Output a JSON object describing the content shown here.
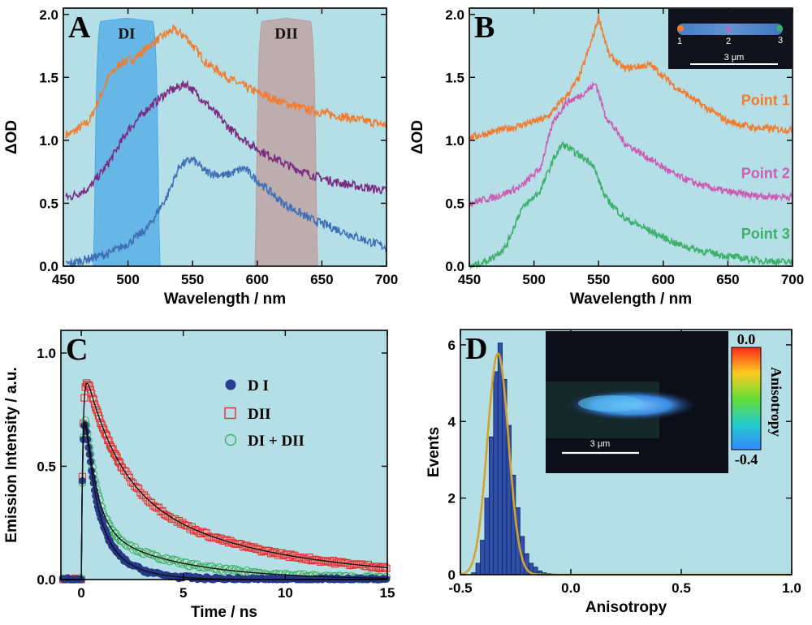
{
  "colors": {
    "bg": "#b4dfe7",
    "orange": "#f37b2d",
    "purple": "#7b2a82",
    "blue": "#3e6fb6",
    "pink": "#cc5cb4",
    "green": "#3caf6a",
    "red": "#e03030",
    "navy": "#2c3e94",
    "gold": "#d4a32a",
    "di_band": "#4aa8e6",
    "dii_band": "#c09a9a"
  },
  "chart_data": [
    {
      "panel": "A",
      "type": "line",
      "ylabel": "ΔOD",
      "xlabel": "Wavelength / nm",
      "xlim": [
        450,
        700
      ],
      "ylim": [
        0,
        2.05
      ],
      "xticks": [
        450,
        500,
        550,
        600,
        650,
        700
      ],
      "yticks": [
        0.0,
        0.5,
        1.0,
        1.5,
        2.0
      ],
      "bands": [
        {
          "label": "DI",
          "range": [
            475,
            523
          ],
          "color": "#4aa8e6"
        },
        {
          "label": "DII",
          "range": [
            600,
            645
          ],
          "color": "#c09a9a"
        }
      ],
      "series": [
        {
          "color": "#f37b2d",
          "x": [
            455,
            470,
            485,
            495,
            505,
            520,
            535,
            545,
            560,
            580,
            600,
            620,
            640,
            660,
            680,
            700
          ],
          "y": [
            1.05,
            1.15,
            1.5,
            1.62,
            1.65,
            1.78,
            1.88,
            1.82,
            1.62,
            1.48,
            1.38,
            1.3,
            1.24,
            1.2,
            1.16,
            1.12
          ]
        },
        {
          "color": "#7b2a82",
          "x": [
            455,
            470,
            485,
            500,
            515,
            530,
            545,
            560,
            580,
            600,
            620,
            640,
            660,
            680,
            700
          ],
          "y": [
            0.55,
            0.62,
            0.82,
            1.08,
            1.25,
            1.38,
            1.45,
            1.3,
            1.08,
            0.93,
            0.82,
            0.73,
            0.67,
            0.63,
            0.6
          ]
        },
        {
          "color": "#3e6fb6",
          "x": [
            455,
            470,
            485,
            500,
            515,
            530,
            540,
            550,
            560,
            575,
            590,
            600,
            620,
            640,
            660,
            680,
            700
          ],
          "y": [
            0.02,
            0.06,
            0.1,
            0.18,
            0.3,
            0.55,
            0.8,
            0.85,
            0.75,
            0.72,
            0.78,
            0.68,
            0.5,
            0.38,
            0.3,
            0.22,
            0.15
          ]
        }
      ]
    },
    {
      "panel": "B",
      "type": "line",
      "ylabel": "ΔOD",
      "xlabel": "Wavelength / nm",
      "xlim": [
        450,
        700
      ],
      "ylim": [
        0,
        2.05
      ],
      "xticks": [
        450,
        500,
        550,
        600,
        650,
        700
      ],
      "yticks": [
        0.0,
        0.5,
        1.0,
        1.5,
        2.0
      ],
      "series": [
        {
          "name": "Point 1",
          "color": "#f37b2d",
          "x": [
            450,
            470,
            490,
            510,
            525,
            535,
            545,
            550,
            558,
            570,
            590,
            610,
            630,
            650,
            670,
            700
          ],
          "y": [
            1.02,
            1.07,
            1.12,
            1.18,
            1.35,
            1.5,
            1.8,
            1.98,
            1.68,
            1.57,
            1.6,
            1.42,
            1.28,
            1.15,
            1.1,
            1.08
          ]
        },
        {
          "name": "Point 2",
          "color": "#cc5cb4",
          "x": [
            450,
            470,
            490,
            505,
            515,
            525,
            535,
            548,
            555,
            570,
            590,
            610,
            630,
            650,
            670,
            700
          ],
          "y": [
            0.5,
            0.55,
            0.63,
            0.78,
            1.15,
            1.3,
            1.35,
            1.45,
            1.2,
            0.98,
            0.85,
            0.72,
            0.64,
            0.59,
            0.56,
            0.55
          ]
        },
        {
          "name": "Point 3",
          "color": "#3caf6a",
          "x": [
            452,
            465,
            478,
            490,
            505,
            515,
            522,
            535,
            545,
            555,
            570,
            590,
            610,
            630,
            650,
            670,
            700
          ],
          "y": [
            0.0,
            0.05,
            0.15,
            0.45,
            0.6,
            0.85,
            0.97,
            0.88,
            0.82,
            0.55,
            0.38,
            0.28,
            0.18,
            0.12,
            0.08,
            0.05,
            0.03
          ]
        }
      ],
      "inset": {
        "scale_label": "3 μm",
        "points": [
          "1",
          "2",
          "3"
        ]
      }
    },
    {
      "panel": "C",
      "type": "line",
      "ylabel": "Emission Intensity / a.u.",
      "xlabel": "Time / ns",
      "xlim": [
        -1,
        15
      ],
      "ylim": [
        0,
        1.1
      ],
      "xticks": [
        0,
        5,
        10,
        15
      ],
      "yticks": [
        0.0,
        0.5,
        1.0
      ],
      "series": [
        {
          "name": "D I",
          "marker": "filled-circle",
          "color": "#2c3e94",
          "components": [
            [
              0.65,
              0.5
            ],
            [
              0.35,
              1.4
            ]
          ]
        },
        {
          "name": "DII",
          "marker": "open-square",
          "color": "#e03030",
          "components": [
            [
              0.55,
              1.6
            ],
            [
              0.45,
              7.0
            ]
          ]
        },
        {
          "name": "DI + DII",
          "marker": "open-circle",
          "color": "#3caf6a",
          "components": [
            [
              0.75,
              0.55
            ],
            [
              0.25,
              4.0
            ]
          ]
        }
      ]
    },
    {
      "panel": "D",
      "type": "bar",
      "ylabel": "Events",
      "xlabel": "Anisotropy",
      "xlim": [
        -0.5,
        1.0
      ],
      "ylim": [
        0,
        6.4
      ],
      "xticks": [
        -0.5,
        0.0,
        0.5,
        1.0
      ],
      "yticks": [
        0,
        2,
        4,
        6
      ],
      "bins": [
        -0.44,
        -0.42,
        -0.4,
        -0.38,
        -0.36,
        -0.34,
        -0.32,
        -0.3,
        -0.28,
        -0.26,
        -0.24,
        -0.22,
        -0.2,
        -0.18,
        -0.16,
        -0.14,
        -0.12,
        -0.1,
        -0.08
      ],
      "values": [
        0.05,
        0.3,
        0.9,
        2.0,
        3.6,
        5.3,
        6.05,
        5.1,
        3.9,
        2.6,
        1.75,
        1.0,
        0.55,
        0.3,
        0.2,
        0.1,
        0.05,
        0.03,
        0.02
      ],
      "fit": {
        "center": -0.33,
        "sigma": 0.048,
        "amplitude": 5.78
      },
      "inset": {
        "scale_label": "3 μm",
        "colorbar_label": "Anisotropy",
        "colorbar_max": "0.0",
        "colorbar_min": "-0.4"
      }
    }
  ]
}
